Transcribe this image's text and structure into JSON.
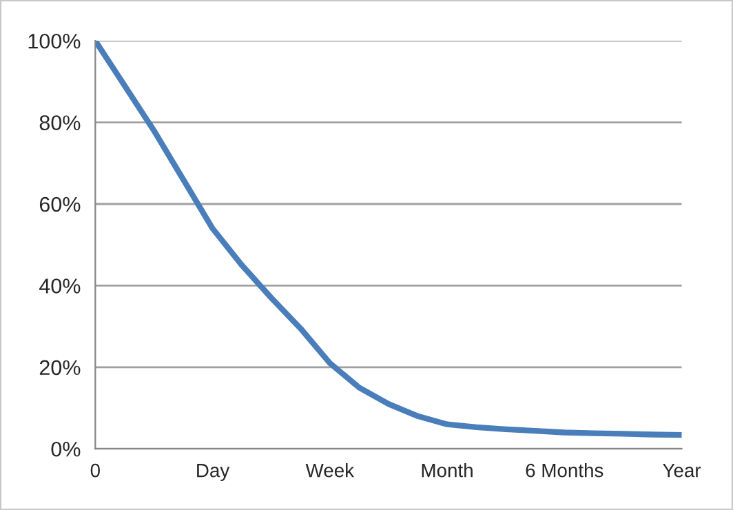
{
  "chart_data": {
    "type": "line",
    "categories": [
      "0",
      null,
      null,
      null,
      "Day",
      null,
      null,
      null,
      "Week",
      null,
      null,
      null,
      "Month",
      null,
      null,
      null,
      "6 Months",
      null,
      null,
      null,
      "Year"
    ],
    "series": [
      {
        "color": "#4a7ebb",
        "values": [
          100,
          89,
          78,
          66,
          54,
          45,
          37,
          29.5,
          21,
          15,
          11,
          8,
          6,
          5.3,
          4.8,
          4.4,
          4,
          3.8,
          3.7,
          3.5,
          3.4
        ]
      }
    ],
    "ylim": [
      0,
      100
    ],
    "yticks": [
      {
        "value": 0,
        "label": "0%"
      },
      {
        "value": 20,
        "label": "20%"
      },
      {
        "value": 40,
        "label": "40%"
      },
      {
        "value": 60,
        "label": "60%"
      },
      {
        "value": 80,
        "label": "80%"
      },
      {
        "value": 100,
        "label": "100%"
      }
    ],
    "grid": "y",
    "line_style": "solid",
    "marker": "none"
  }
}
